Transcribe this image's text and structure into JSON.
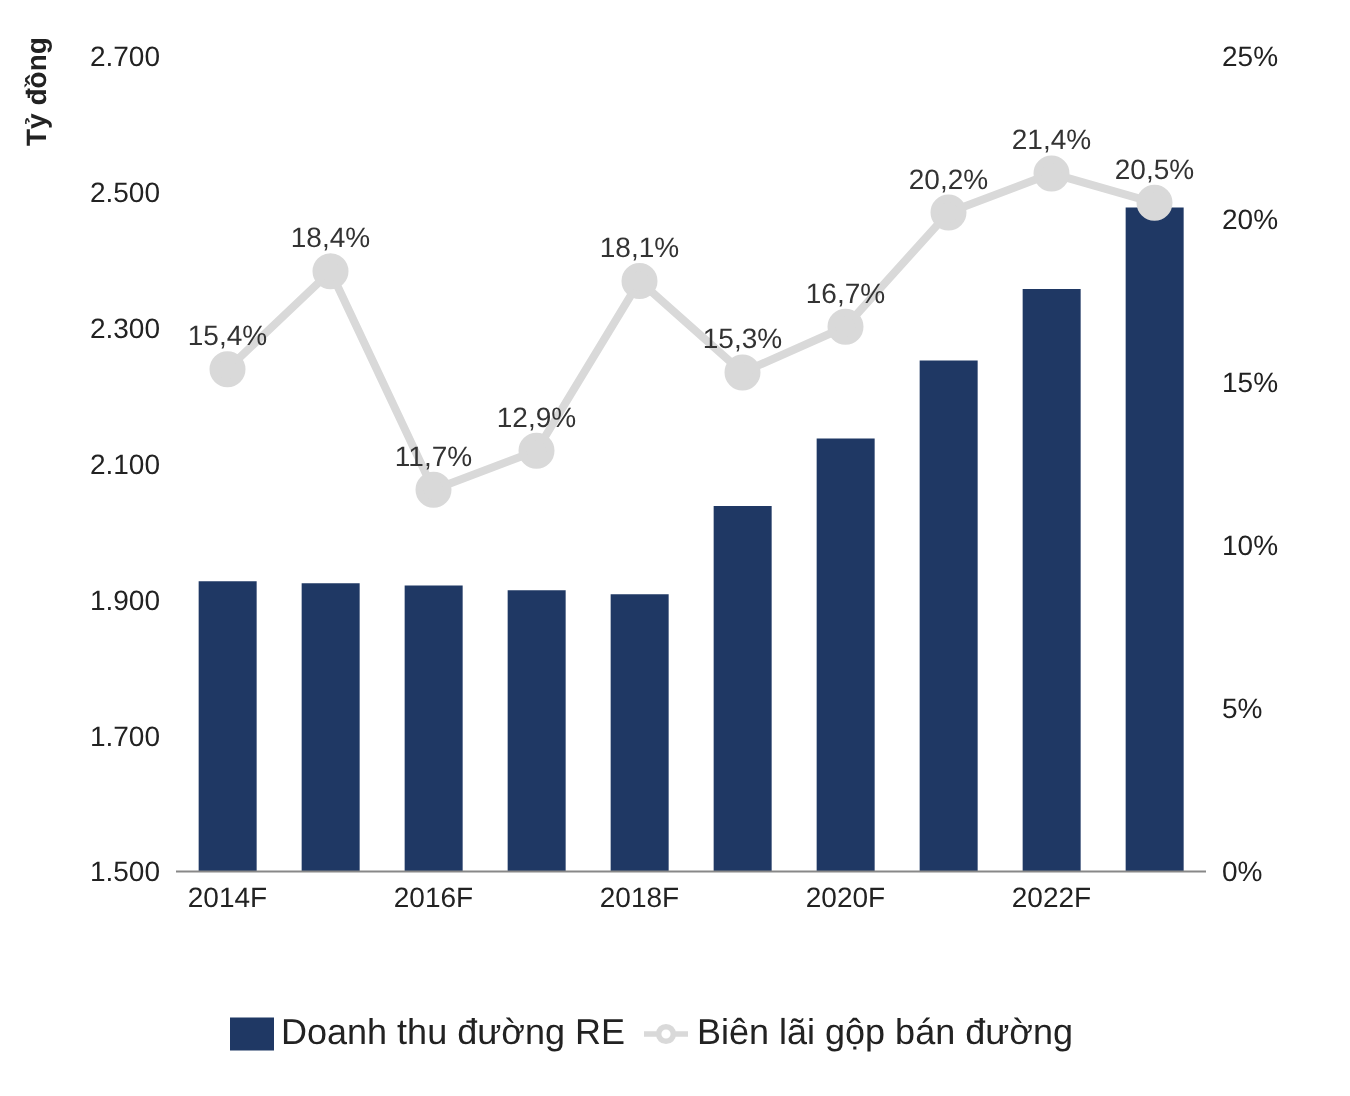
{
  "chart_data": {
    "type": "bar",
    "ylabel": "Tỷ đồng",
    "categories": [
      "2014F",
      null,
      "2016F",
      null,
      "2018F",
      null,
      "2020F",
      null,
      "2022F",
      null
    ],
    "series": [
      {
        "name": "Doanh thu đường RE",
        "color": "#1f3864",
        "values": [
          1927,
          1924,
          1921,
          1914,
          1908,
          2038,
          2137,
          2252,
          2357,
          2477
        ]
      },
      {
        "name": "Biên lãi gộp bán đường",
        "type": "line",
        "axis": "y2",
        "color": "#d9d9d9",
        "values": [
          15.4,
          18.4,
          11.7,
          12.9,
          18.1,
          15.3,
          16.7,
          20.2,
          21.4,
          20.5
        ],
        "value_labels": [
          "15,4%",
          "18,4%",
          "11,7%",
          "12,9%",
          "18,1%",
          "15,3%",
          "16,7%",
          "20,2%",
          "21,4%",
          "20,5%"
        ]
      }
    ],
    "ylim": [
      1500,
      2700
    ],
    "yticks": [
      {
        "value": 1500,
        "label": "1.500"
      },
      {
        "value": 1700,
        "label": "1.700"
      },
      {
        "value": 1900,
        "label": "1.900"
      },
      {
        "value": 2100,
        "label": "2.100"
      },
      {
        "value": 2300,
        "label": "2.300"
      },
      {
        "value": 2500,
        "label": "2.500"
      },
      {
        "value": 2700,
        "label": "2.700"
      }
    ],
    "y2lim": [
      0,
      25
    ],
    "y2ticks": [
      {
        "value": 0,
        "label": "0%"
      },
      {
        "value": 5,
        "label": "5%"
      },
      {
        "value": 10,
        "label": "10%"
      },
      {
        "value": 15,
        "label": "15%"
      },
      {
        "value": 20,
        "label": "20%"
      },
      {
        "value": 25,
        "label": "25%"
      }
    ],
    "marker": "circle",
    "legend": "bottom",
    "grid": false
  }
}
